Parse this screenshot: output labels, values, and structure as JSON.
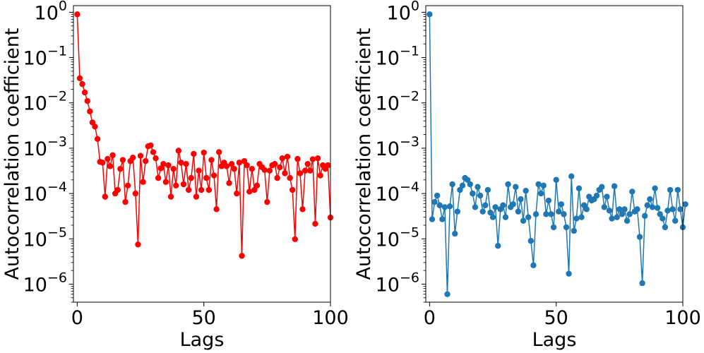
{
  "chart_data": [
    {
      "type": "line",
      "title": "",
      "xlabel": "Lags",
      "ylabel": "Autocorrelation coefficient",
      "xlim": [
        -1.5,
        100
      ],
      "ylim": [
        4e-07,
        1.4
      ],
      "yscale": "log",
      "grid": false,
      "x_ticks": [
        0,
        50,
        100
      ],
      "y_ticks": [
        {
          "base": "10",
          "exp": "0",
          "value": 1
        },
        {
          "base": "10",
          "exp": "−1",
          "value": 0.1
        },
        {
          "base": "10",
          "exp": "−2",
          "value": 0.01
        },
        {
          "base": "10",
          "exp": "−3",
          "value": 0.001
        },
        {
          "base": "10",
          "exp": "−4",
          "value": 0.0001
        },
        {
          "base": "10",
          "exp": "−5",
          "value": 1e-05
        },
        {
          "base": "10",
          "exp": "−6",
          "value": 1e-06
        }
      ],
      "color": "#ff0000",
      "x_start": 0,
      "values": [
        0.9,
        0.035,
        0.026,
        0.017,
        0.011,
        0.0065,
        0.0037,
        0.003,
        0.0016,
        0.0005,
        0.00048,
        8.5e-05,
        0.00058,
        0.0004,
        0.0007,
        0.0001,
        0.00012,
        0.00035,
        0.00055,
        6.5e-05,
        0.00015,
        0.00052,
        0.00062,
        0.0001,
        7.5e-06,
        0.00068,
        0.00018,
        0.00052,
        0.0011,
        0.00115,
        0.00082,
        0.0006,
        0.00022,
        0.00036,
        0.00045,
        0.00018,
        0.00042,
        8.5e-05,
        0.00035,
        0.00015,
        0.00088,
        0.00048,
        0.00016,
        0.00045,
        0.00012,
        0.00022,
        0.00075,
        8.5e-05,
        0.00032,
        0.00012,
        0.0008,
        0.00022,
        0.00012,
        0.00055,
        0.00025,
        4.5e-05,
        0.00082,
        0.0004,
        0.00048,
        0.0004,
        0.00017,
        0.00045,
        0.00035,
        0.0001,
        0.00048,
        4.2e-06,
        0.00052,
        0.00042,
        0.00011,
        0.00035,
        0.00012,
        0.00015,
        0.00045,
        0.00038,
        0.00033,
        6.5e-05,
        0.00032,
        0.00042,
        0.00045,
        0.00022,
        0.00038,
        0.0006,
        0.00028,
        0.00065,
        0.00022,
        0.00012,
        9.8e-06,
        0.00058,
        0.00028,
        4.5e-05,
        0.00032,
        0.00045,
        0.00032,
        0.00057,
        2.15e-05,
        0.0006,
        0.00025,
        0.00042,
        0.00035,
        0.00042,
        2.95e-05
      ]
    },
    {
      "type": "line",
      "title": "",
      "xlabel": "Lags",
      "ylabel": "Autocorrelation coefficient",
      "xlim": [
        -1.5,
        100
      ],
      "ylim": [
        4e-07,
        1.4
      ],
      "yscale": "log",
      "grid": false,
      "x_ticks": [
        0,
        50,
        100
      ],
      "y_ticks": [
        {
          "base": "10",
          "exp": "0",
          "value": 1
        },
        {
          "base": "10",
          "exp": "−1",
          "value": 0.1
        },
        {
          "base": "10",
          "exp": "−2",
          "value": 0.01
        },
        {
          "base": "10",
          "exp": "−3",
          "value": 0.001
        },
        {
          "base": "10",
          "exp": "−4",
          "value": 0.0001
        },
        {
          "base": "10",
          "exp": "−5",
          "value": 1e-05
        },
        {
          "base": "10",
          "exp": "−6",
          "value": 1e-06
        }
      ],
      "color": "#1f77b4",
      "x_start": 0,
      "values": [
        0.9,
        2.7e-05,
        6.5e-05,
        9e-05,
        5.5e-05,
        2.7e-05,
        5e-05,
        6e-07,
        5.2e-05,
        0.00016,
        1.3e-05,
        4e-05,
        0.00012,
        0.00015,
        0.00022,
        0.0002,
        0.00016,
        0.0001,
        5e-05,
        0.00014,
        9e-05,
        4e-05,
        5.5e-05,
        0.00012,
        3.8e-05,
        3e-05,
        5e-05,
        7e-06,
        4.5e-05,
        5.5e-05,
        3e-05,
        0.00016,
        5e-05,
        5.8e-05,
        0.00014,
        4e-05,
        7.5e-05,
        2.5e-05,
        0.000115,
        3e-05,
        9e-06,
        2.6e-06,
        3.5e-05,
        0.00016,
        0.0001,
        0.00015,
        3.5e-05,
        7e-05,
        3.5e-05,
        1.8e-05,
        0.0002,
        4e-05,
        5.8e-05,
        3.5e-05,
        1.8e-05,
        1.7e-06,
        0.00024,
        1.5e-05,
        2.8e-05,
        0.00013,
        3e-05,
        5.5e-05,
        4.5e-05,
        8.5e-05,
        7e-05,
        7.5e-05,
        9e-05,
        0.00012,
        0.00014,
        5e-05,
        8.5e-05,
        4.2e-05,
        2.8e-05,
        0.000145,
        3e-05,
        4.5e-05,
        3.5e-05,
        4.5e-05,
        2.5e-05,
        3.5e-05,
        0.00011,
        4e-05,
        4.5e-05,
        1.1e-05,
        1.05e-06,
        3.2e-05,
        5.5e-05,
        7.5e-05,
        5e-05,
        0.00013,
        4.8e-05,
        3.5e-05,
        2.8e-05,
        1.8e-05,
        4.2e-05,
        0.00012,
        4.5e-05,
        2.5e-05,
        0.00012,
        4.5e-05,
        1.8e-05,
        5.8e-05
      ]
    }
  ]
}
